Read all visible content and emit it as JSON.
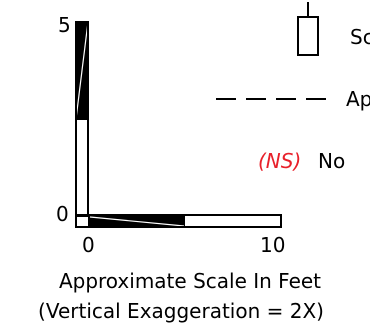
{
  "scale_bar": {
    "vertical": {
      "top_label": "5",
      "bottom_label": "0"
    },
    "horizontal": {
      "left_label": "0",
      "right_label": "10"
    },
    "caption_line1": "Approximate Scale In Feet",
    "caption_line2": "(Vertical Exaggeration = 2X)"
  },
  "legend": {
    "items": [
      {
        "symbol": "rectangle-outline",
        "text": "Sc"
      },
      {
        "symbol": "dashed-line",
        "text": "Ap"
      },
      {
        "symbol": "ns-label",
        "tag": "(NS)",
        "tag_color": "#e8202a",
        "text": "No"
      }
    ]
  },
  "colors": {
    "ink": "#000000",
    "ns_tag": "#e8202a"
  }
}
